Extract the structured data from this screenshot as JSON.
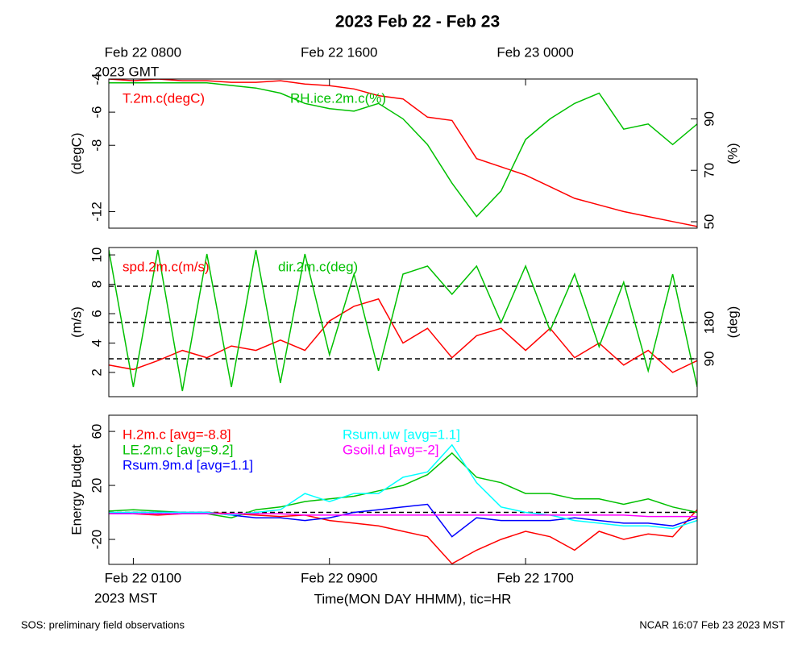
{
  "title": "2023 Feb 22 - Feb 23",
  "footer_left": "SOS: preliminary field observations",
  "footer_right": "NCAR 16:07 Feb 23 2023 MST",
  "chart_data": [
    {
      "type": "line",
      "x": [
        0,
        1,
        2,
        3,
        4,
        5,
        6,
        7,
        8,
        9,
        10,
        11,
        12,
        13,
        14,
        15,
        16,
        17,
        18,
        19,
        20,
        21,
        22,
        23,
        24
      ],
      "xlim": [
        0,
        24
      ],
      "top_xticks": [
        {
          "value": 1,
          "label": "Feb 22 0800"
        },
        {
          "value": 9,
          "label": "Feb 22 1600"
        },
        {
          "value": 17,
          "label": "Feb 23 0000"
        }
      ],
      "top_axis_note": "2023 GMT",
      "ylabel": "(degC)",
      "y2label": "(%)",
      "ylim": [
        -13,
        -4
      ],
      "yticks": [
        -4,
        -6,
        -8,
        -12
      ],
      "y2lim": [
        47.5,
        105.5
      ],
      "y2ticks": [
        50,
        70,
        90
      ],
      "series": [
        {
          "name": "T.2m.c(degC)",
          "color": "#ff0000",
          "values": [
            -4.0,
            -4.1,
            -4.0,
            -4.1,
            -4.1,
            -4.2,
            -4.2,
            -4.1,
            -4.3,
            -4.4,
            -4.6,
            -5.0,
            -5.2,
            -6.3,
            -6.5,
            -8.8,
            -9.3,
            -9.8,
            -10.5,
            -11.2,
            -11.6,
            -12.0,
            -12.3,
            -12.6,
            -12.9
          ]
        },
        {
          "name": "RH.ice.2m.c(%)",
          "color": "#00c000",
          "axis": "y2",
          "values": [
            104,
            104,
            104,
            104,
            104,
            103,
            102,
            100,
            96,
            94,
            93,
            96,
            90,
            80,
            65,
            52,
            62,
            82,
            90,
            96,
            100,
            86,
            88,
            80,
            88
          ]
        }
      ]
    },
    {
      "type": "line",
      "x": [
        0,
        1,
        2,
        3,
        4,
        5,
        6,
        7,
        8,
        9,
        10,
        11,
        12,
        13,
        14,
        15,
        16,
        17,
        18,
        19,
        20,
        21,
        22,
        23,
        24
      ],
      "xlim": [
        0,
        24
      ],
      "ylabel": "(m/s)",
      "y2label": "(deg)",
      "ylim": [
        0.35,
        10.5
      ],
      "yticks": [
        2,
        4,
        6,
        8,
        10
      ],
      "y2lim": [
        -4,
        366
      ],
      "y2ticks": [
        90,
        180
      ],
      "reference_axis": "y2",
      "reference_lines": [
        90,
        180,
        270
      ],
      "series": [
        {
          "name": "spd.2m.c(m/s)",
          "color": "#ff0000",
          "values": [
            2.5,
            2.2,
            2.8,
            3.5,
            3.0,
            3.8,
            3.5,
            4.2,
            3.5,
            5.5,
            6.5,
            7.0,
            4.0,
            5.0,
            3.0,
            4.5,
            5.0,
            3.5,
            5.0,
            3.0,
            4.0,
            2.5,
            3.5,
            2.0,
            2.8
          ]
        },
        {
          "name": "dir.2m.c(deg)",
          "color": "#00c000",
          "axis": "y2",
          "values": [
            360,
            20,
            360,
            10,
            350,
            20,
            360,
            30,
            350,
            100,
            300,
            60,
            300,
            320,
            250,
            320,
            180,
            320,
            160,
            300,
            120,
            280,
            60,
            300,
            20
          ]
        }
      ]
    },
    {
      "type": "line",
      "x": [
        0,
        1,
        2,
        3,
        4,
        5,
        6,
        7,
        8,
        9,
        10,
        11,
        12,
        13,
        14,
        15,
        16,
        17,
        18,
        19,
        20,
        21,
        22,
        23,
        24
      ],
      "xlim": [
        0,
        24
      ],
      "xticks": [
        {
          "value": 1,
          "label": "Feb 22 0100"
        },
        {
          "value": 9,
          "label": "Feb 22 0900"
        },
        {
          "value": 17,
          "label": "Feb 22 1700"
        }
      ],
      "bottom_axis_note": "2023 MST",
      "xlabel": "Time(MON DAY HHMM), tic=HR",
      "ylabel": "Energy Budget",
      "ylim": [
        -38.5,
        72
      ],
      "yticks": [
        -20,
        20,
        60
      ],
      "reference_axis": "y",
      "reference_lines": [
        0
      ],
      "series": [
        {
          "name": "H.2m.c [avg=-8.8]",
          "color": "#ff0000",
          "values": [
            0,
            -1,
            -2,
            -1,
            0,
            -1,
            -2,
            -3,
            -2,
            -6,
            -8,
            -10,
            -14,
            -18,
            -38,
            -28,
            -20,
            -14,
            -18,
            -28,
            -14,
            -20,
            -16,
            -18,
            2
          ]
        },
        {
          "name": "LE.2m.c [avg=9.2]",
          "color": "#00c000",
          "values": [
            1,
            2,
            1,
            0,
            -1,
            -4,
            2,
            4,
            8,
            10,
            12,
            16,
            20,
            28,
            44,
            26,
            22,
            14,
            14,
            10,
            10,
            6,
            10,
            4,
            0
          ]
        },
        {
          "name": "Rsum.9m.d [avg=1.1]",
          "color": "#0000ff",
          "values": [
            -1,
            0,
            0,
            0,
            0,
            -2,
            -4,
            -4,
            -6,
            -4,
            0,
            2,
            4,
            6,
            -18,
            -4,
            -6,
            -6,
            -6,
            -4,
            -6,
            -8,
            -8,
            -10,
            -4
          ]
        },
        {
          "name": "Rsum.uw [avg=1.1]",
          "color": "#00ffff",
          "values": [
            0,
            0,
            0,
            0,
            0,
            -2,
            0,
            2,
            14,
            8,
            14,
            14,
            26,
            30,
            50,
            22,
            4,
            0,
            -2,
            -6,
            -8,
            -10,
            -10,
            -12,
            -6
          ]
        },
        {
          "name": "Gsoil.d [avg=-2]",
          "color": "#ff00ff",
          "values": [
            -1,
            -1,
            -1,
            -1,
            -1,
            -1,
            -1,
            -1,
            -2,
            -2,
            -2,
            -2,
            -2,
            -2,
            -2,
            -2,
            -2,
            -2,
            -2,
            -2,
            -2,
            -2,
            -3,
            -3,
            -3
          ]
        }
      ]
    }
  ]
}
